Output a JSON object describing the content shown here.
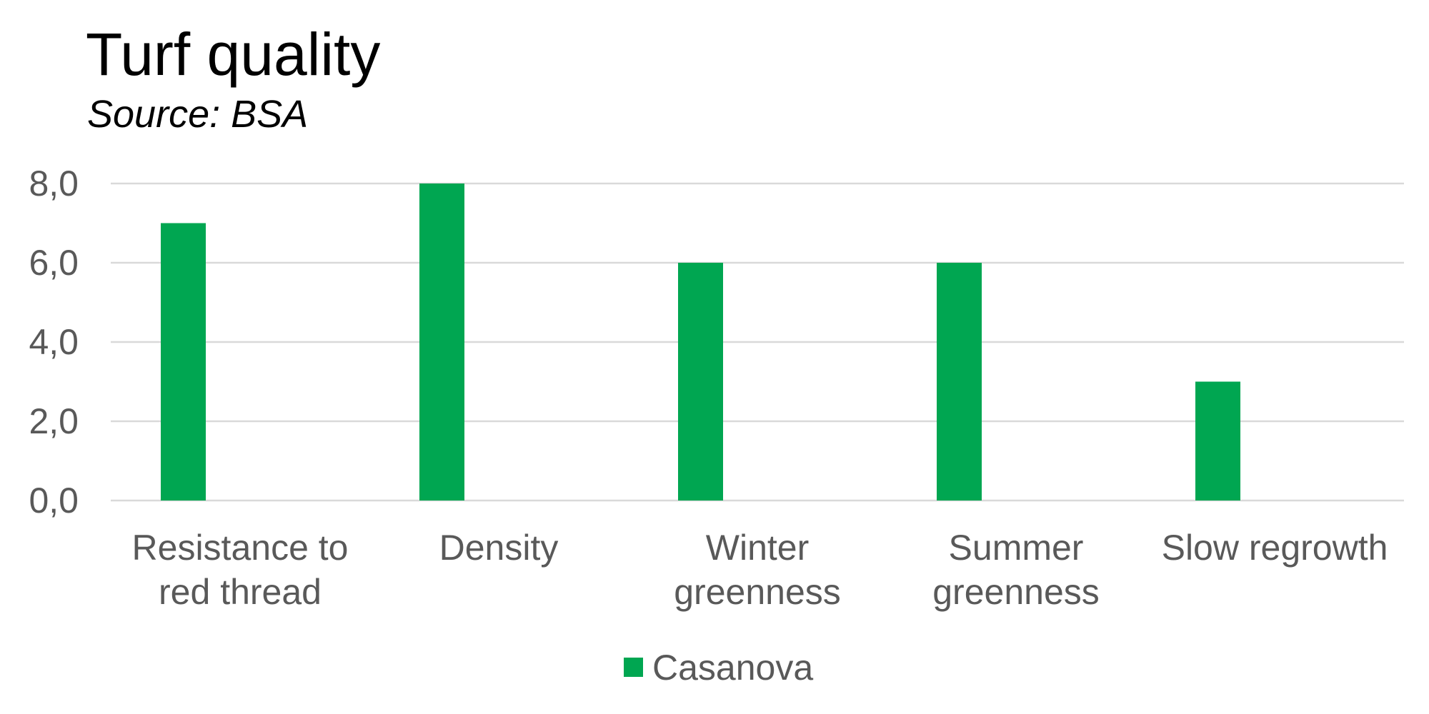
{
  "chart_data": {
    "type": "bar",
    "title": "Turf quality",
    "subtitle": "Source: BSA",
    "categories": [
      [
        "Resistance to",
        "red thread"
      ],
      [
        "Density"
      ],
      [
        "Winter",
        "greenness"
      ],
      [
        "Summer",
        "greenness"
      ],
      [
        "Slow regrowth"
      ]
    ],
    "series": [
      {
        "name": "Casanova",
        "color": "#00A651",
        "values": [
          7.0,
          8.0,
          6.0,
          6.0,
          3.0
        ]
      }
    ],
    "ylim": [
      0,
      8
    ],
    "yticks": [
      0,
      2,
      4,
      6,
      8
    ],
    "ytick_labels": [
      "0,0",
      "2,0",
      "4,0",
      "6,0",
      "8,0"
    ],
    "grid": true,
    "legend_position": "bottom-center",
    "gridline_color": "#D9D9D9"
  }
}
